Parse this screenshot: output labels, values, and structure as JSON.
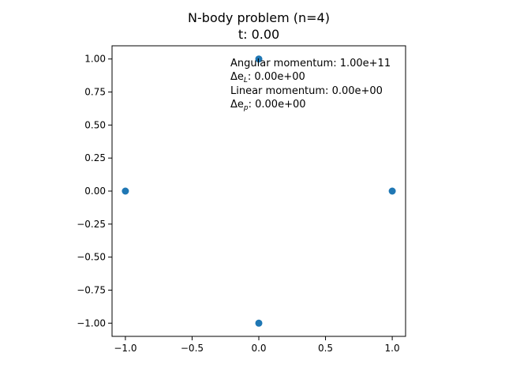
{
  "chart_data": {
    "type": "scatter",
    "title": "N-body problem (n=4)",
    "subtitle": "t: 0.00",
    "xlabel": "",
    "ylabel": "",
    "xlim": [
      -1.1,
      1.1
    ],
    "ylim": [
      -1.1,
      1.1
    ],
    "x_ticks": [
      -1.0,
      -0.5,
      0.0,
      0.5,
      1.0
    ],
    "x_tick_labels": [
      "−1.0",
      "−0.5",
      "0.0",
      "0.5",
      "1.0"
    ],
    "y_ticks": [
      1.0,
      0.75,
      0.5,
      0.25,
      0.0,
      -0.25,
      -0.5,
      -0.75,
      -1.0
    ],
    "y_tick_labels": [
      "1.00",
      "0.75",
      "0.50",
      "0.25",
      "0.00",
      "−0.25",
      "−0.50",
      "−0.75",
      "−1.00"
    ],
    "grid": false,
    "legend": "none",
    "marker_color": "#1f77b4",
    "points": [
      {
        "x": 0.0,
        "y": 1.0
      },
      {
        "x": -1.0,
        "y": 0.0
      },
      {
        "x": 1.0,
        "y": 0.0
      },
      {
        "x": 0.0,
        "y": -1.0
      }
    ],
    "annotations": {
      "angular_momentum": "Angular momentum: 1.00e+11",
      "delta_eL_prefix": "Δe",
      "delta_eL_sub": "L",
      "delta_eL_value": ": 0.00e+00",
      "linear_momentum": "Linear momentum: 0.00e+00",
      "delta_ep_prefix": "Δe",
      "delta_ep_sub": "p",
      "delta_ep_value": ": 0.00e+00"
    }
  }
}
